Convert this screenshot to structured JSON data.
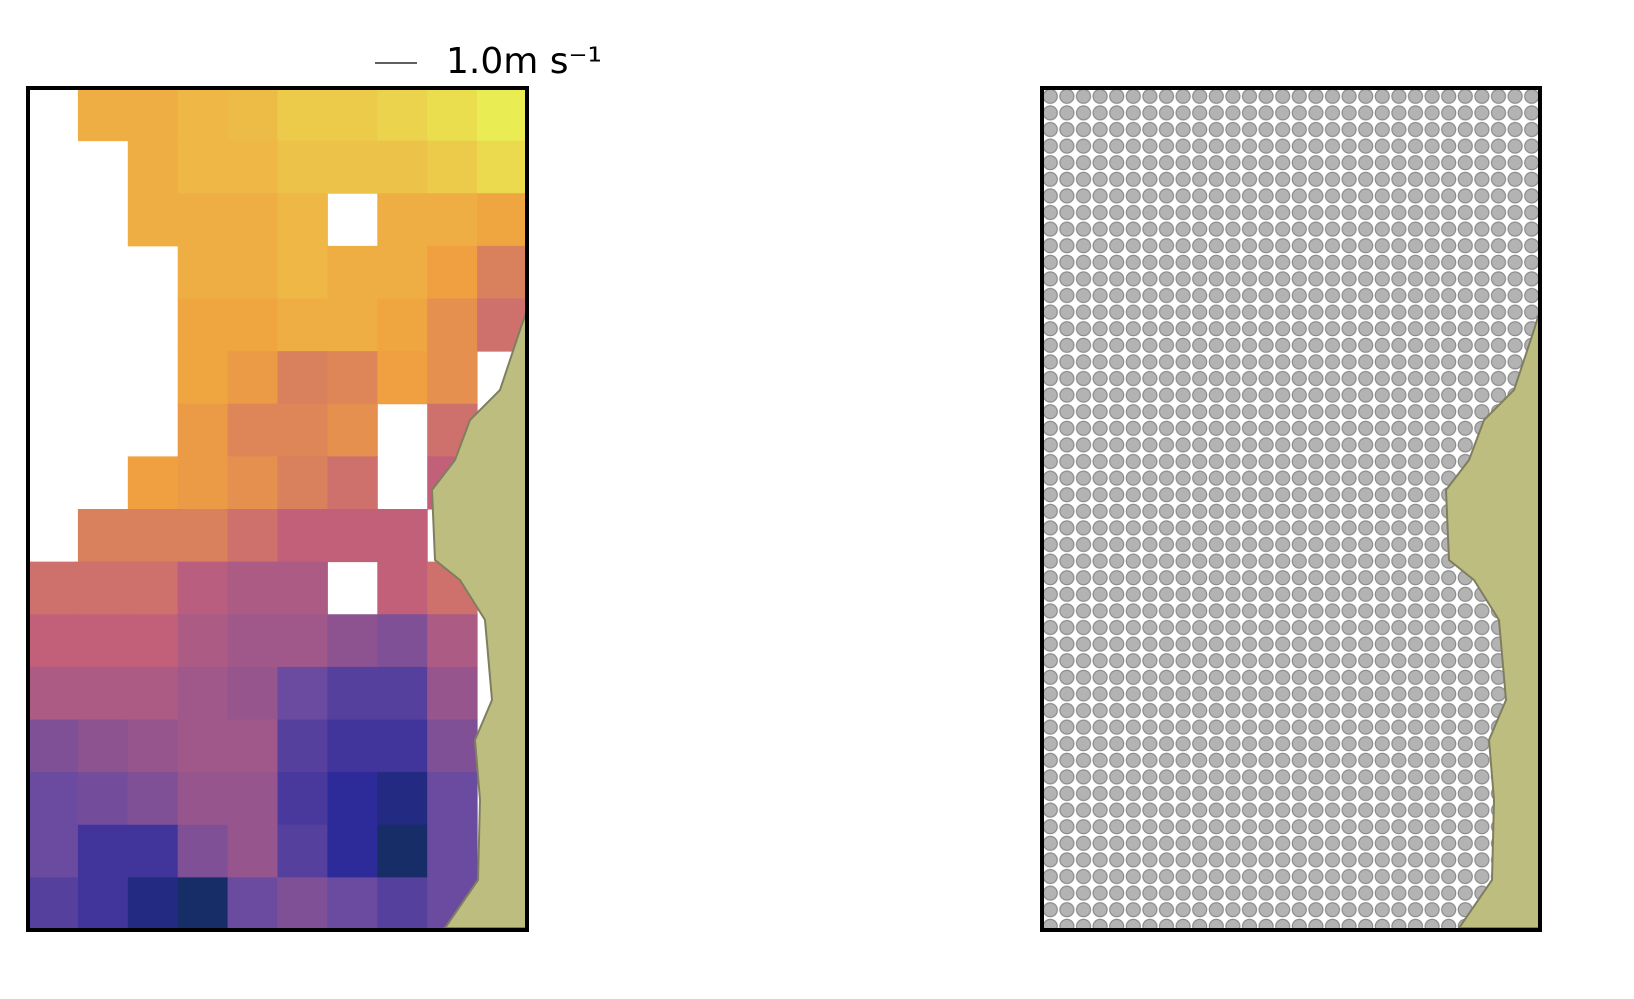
{
  "chart_data": {
    "type": "heatmap",
    "quiver_key": {
      "value": 1.0,
      "label": "1.0m s⁻¹"
    },
    "values": [
      [
        null,
        0.75,
        0.75,
        0.78,
        0.8,
        0.85,
        0.85,
        0.88,
        0.92,
        0.97
      ],
      [
        null,
        null,
        0.75,
        0.78,
        0.78,
        0.82,
        0.82,
        0.82,
        0.85,
        0.9
      ],
      [
        null,
        null,
        0.75,
        0.75,
        0.75,
        0.78,
        null,
        0.75,
        0.75,
        0.72
      ],
      [
        null,
        null,
        null,
        0.75,
        0.75,
        0.78,
        0.75,
        0.75,
        0.7,
        0.6
      ],
      [
        null,
        null,
        null,
        0.72,
        0.72,
        0.75,
        0.75,
        0.72,
        0.65,
        0.55
      ],
      [
        null,
        null,
        null,
        0.72,
        0.68,
        0.6,
        0.62,
        0.7,
        0.65,
        null
      ],
      [
        null,
        null,
        null,
        0.68,
        0.62,
        0.62,
        0.65,
        null,
        0.55,
        null
      ],
      [
        null,
        null,
        0.7,
        0.68,
        0.65,
        0.6,
        0.55,
        null,
        0.5,
        null
      ],
      [
        null,
        0.6,
        0.6,
        0.6,
        0.55,
        0.5,
        0.5,
        0.5,
        null,
        null
      ],
      [
        0.55,
        0.55,
        0.55,
        0.48,
        0.45,
        0.45,
        null,
        0.5,
        0.55,
        null
      ],
      [
        0.5,
        0.5,
        0.5,
        0.45,
        0.42,
        0.42,
        0.38,
        0.35,
        0.45,
        null
      ],
      [
        0.45,
        0.45,
        0.45,
        0.42,
        0.4,
        0.3,
        0.25,
        0.25,
        0.4,
        null
      ],
      [
        0.35,
        0.38,
        0.4,
        0.42,
        0.42,
        0.25,
        0.2,
        0.2,
        0.35,
        null
      ],
      [
        0.3,
        0.32,
        0.35,
        0.4,
        0.4,
        0.22,
        0.15,
        0.1,
        0.3,
        null
      ],
      [
        0.3,
        0.2,
        0.2,
        0.35,
        0.4,
        0.25,
        0.15,
        0.05,
        0.3,
        null
      ],
      [
        0.25,
        0.2,
        0.1,
        0.05,
        0.3,
        0.35,
        0.3,
        0.25,
        0.3,
        null
      ]
    ]
  }
}
